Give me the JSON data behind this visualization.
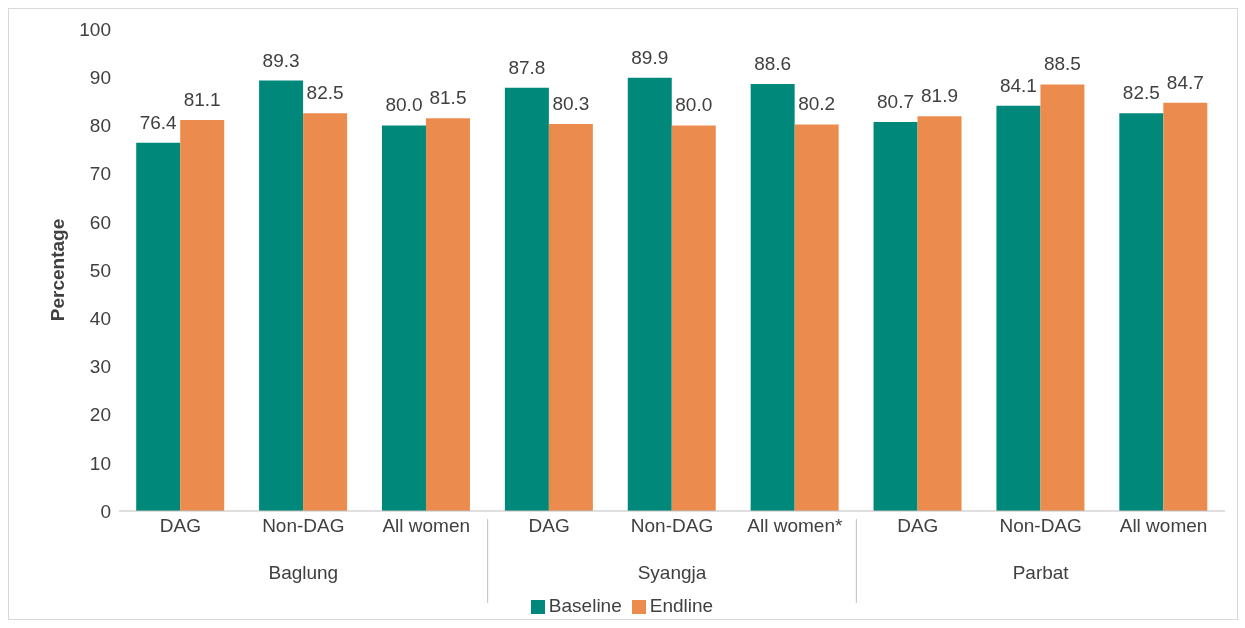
{
  "chart_data": {
    "type": "bar",
    "ylabel": "Percentage",
    "categories": [
      "DAG",
      "Non-DAG",
      "All women",
      "DAG",
      "Non-DAG",
      "All women*",
      "DAG",
      "Non-DAG",
      "All women"
    ],
    "annotations": [
      "Baglung",
      "Syangja",
      "Parbat"
    ],
    "series": [
      {
        "name": "Baseline",
        "color": "#00897b",
        "values": [
          76.4,
          89.3,
          80.0,
          87.8,
          89.9,
          88.6,
          80.7,
          84.1,
          82.5
        ],
        "value_labels": [
          "76.4",
          "89.3",
          "80.0",
          "87.8",
          "89.9",
          "88.6",
          "80.7",
          "84.1",
          "82.5"
        ]
      },
      {
        "name": "Endline",
        "color": "#ec8b4e",
        "values": [
          81.1,
          82.5,
          81.5,
          80.3,
          80.0,
          80.2,
          81.9,
          88.5,
          84.7
        ],
        "value_labels": [
          "81.1",
          "82.5",
          "81.5",
          "80.3",
          "80.0",
          "80.2",
          "81.9",
          "88.5",
          "84.7"
        ]
      }
    ],
    "ylim": [
      0,
      100
    ],
    "yticks": [
      0,
      10,
      20,
      30,
      40,
      50,
      60,
      70,
      80,
      90,
      100
    ],
    "grid": false,
    "legend": "bottom"
  }
}
